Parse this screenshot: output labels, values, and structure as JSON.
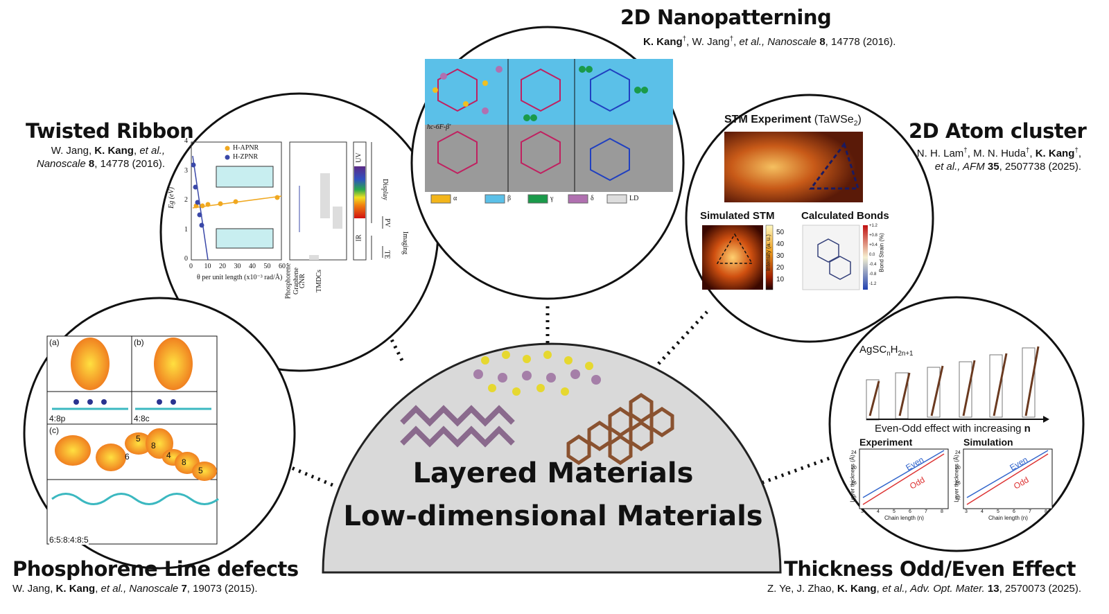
{
  "center": {
    "line1": "Layered Materials",
    "line2": "Low-dimensional Materials"
  },
  "twisted_ribbon": {
    "title": "Twisted Ribbon",
    "citation": [
      [
        "W. Jang, ",
        {
          "text": "K. Kang",
          "style": "b"
        },
        ", ",
        {
          "text": "et al.,",
          "style": "i"
        }
      ],
      [
        {
          "text": "Nanoscale ",
          "style": "i"
        },
        {
          "text": "8",
          "style": "b"
        },
        ", 14778 (2016)."
      ]
    ],
    "y_label": "Eg (eV)",
    "x_label": "θ per unit length (x10⁻³ rad/Å)",
    "y_ticks": [
      "0",
      "1",
      "2",
      "3",
      "4"
    ],
    "x_ticks": [
      "0",
      "10",
      "20",
      "30",
      "40",
      "50",
      "60"
    ],
    "legend": [
      "H-APNR",
      "H-ZPNR"
    ],
    "materials": [
      "Phosphorene",
      "Graphene",
      "GNR",
      "TMDCs"
    ],
    "bands": [
      "UV",
      "IR"
    ],
    "applications": [
      "Display",
      "PV",
      "Imaging",
      "TE"
    ]
  },
  "nanopatterning": {
    "title": "2D Nanopatterning",
    "citation": [
      [
        {
          "text": "K. Kang",
          "style": "b"
        },
        {
          "text": "†",
          "style": "sup"
        },
        ", W. Jang",
        {
          "text": "†",
          "style": "sup"
        },
        ", ",
        {
          "text": "et al., Nanoscale ",
          "style": "i"
        },
        {
          "text": "8",
          "style": "b"
        },
        ", 14778 (2016)."
      ]
    ],
    "panel_label": "hc-6F-β'",
    "legend": [
      "α",
      "β",
      "γ",
      "δ",
      "LD"
    ]
  },
  "atom_cluster": {
    "title": "2D Atom cluster",
    "citation": [
      [
        "N. H. Lam",
        {
          "text": "†",
          "style": "sup"
        },
        ", M. N. Huda",
        {
          "text": "†",
          "style": "sup"
        },
        ", ",
        {
          "text": "K. Kang",
          "style": "b"
        },
        {
          "text": "†",
          "style": "sup"
        },
        ","
      ],
      [
        {
          "text": "et al., AFM ",
          "style": "i"
        },
        {
          "text": "35",
          "style": "b"
        },
        ", 2507738 (2025)."
      ]
    ],
    "stm_title": [
      [
        {
          "text": "STM Experiment",
          "style": "b"
        },
        " (TaWSe",
        {
          "text": "2",
          "style": "sub"
        },
        ")"
      ]
    ],
    "sim_title": "Simulated STM",
    "bonds_title": "Calculated Bonds",
    "intensity_label": "Intensity (a. u.)",
    "intensity_ticks": [
      "50",
      "40",
      "30",
      "20",
      "10"
    ],
    "strain_label": "Bond Strain (%)",
    "strain_ticks": [
      "+1.2",
      "+0.8",
      "+0.4",
      "0.0",
      "-0.4",
      "-0.8",
      "-1.2"
    ]
  },
  "phosphorene": {
    "title": "Phosphorene Line defects",
    "citation": [
      [
        "W. Jang, ",
        {
          "text": "K. Kang",
          "style": "b"
        },
        ", ",
        {
          "text": "et al., Nanoscale ",
          "style": "i"
        },
        {
          "text": "7",
          "style": "b"
        },
        ", 19073 (2015)."
      ]
    ],
    "panel_tags": [
      "(a)",
      "(b)",
      "(c)"
    ],
    "structures": [
      "4:8p",
      "4:8c",
      "6:5:8:4:8:5"
    ],
    "ring_labels": [
      "5",
      "8",
      "6",
      "4",
      "8",
      "5"
    ]
  },
  "thickness": {
    "title": "Thickness Odd/Even Effect",
    "citation": [
      [
        "Z. Ye, J. Zhao, ",
        {
          "text": "K. Kang",
          "style": "b"
        },
        ", ",
        {
          "text": "et al., Adv. Opt. Mater. ",
          "style": "i"
        },
        {
          "text": "13",
          "style": "b"
        },
        ", 2570073 (2025)."
      ]
    ],
    "formula": [
      [
        "AgSC",
        {
          "text": "n",
          "style": "sub"
        },
        "H",
        {
          "text": "2n+1",
          "style": "sub"
        }
      ]
    ],
    "arrow_label": [
      [
        "Even-Odd effect with increasing ",
        {
          "text": "n",
          "style": "b"
        }
      ]
    ],
    "plots": [
      "Experiment",
      "Simulation"
    ],
    "x_label": "Chain length (n)",
    "y_label": "Layer thickness (Å)",
    "x_ticks": [
      "3",
      "4",
      "5",
      "6",
      "7",
      "8"
    ],
    "y_ticks": [
      "24",
      "20",
      "16",
      "12"
    ],
    "series": [
      "Even",
      "Odd"
    ]
  }
}
